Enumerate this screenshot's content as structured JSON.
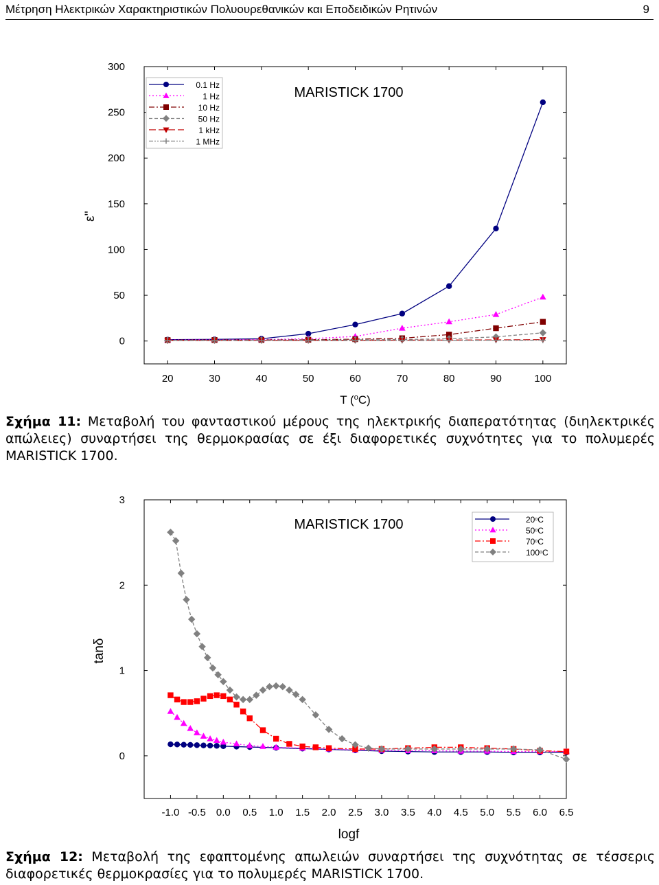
{
  "header": {
    "title": "Μέτρηση Ηλεκτρικών Χαρακτηριστικών Πολυουρεθανικών και Εποδειδικών Ρητινών",
    "page_number": "9"
  },
  "figure11": {
    "caption_label": "Σχήμα 11:",
    "caption_text": "Μεταβολή του φανταστικού μέρους της ηλεκτρικής διαπερατότητας (διηλεκτρικές απώλειες) συναρτήσει της θερμοκρασίας σε έξι διαφορετικές συχνότητες για το πολυμερές MARISTICK 1700."
  },
  "figure12": {
    "caption_label": "Σχήμα 12:",
    "caption_text": "Μεταβολή της εφαπτομένης απωλειών συναρτήσει της συχνότητας σε τέσσερις διαφορετικές θερμοκρασίες για το πολυμερές MARISTICK 1700."
  },
  "chart_data": [
    {
      "type": "line",
      "title": "MARISTICK 1700",
      "xlabel": "T (°C)",
      "xlabel_parts": [
        "T (",
        "o",
        "C)"
      ],
      "ylabel": "ε''",
      "xlim": [
        15,
        105
      ],
      "ylim": [
        -25,
        300
      ],
      "xticks": [
        20,
        30,
        40,
        50,
        60,
        70,
        80,
        90,
        100
      ],
      "yticks": [
        0,
        50,
        100,
        150,
        200,
        250,
        300
      ],
      "legend_position": "top-left",
      "x": [
        20,
        30,
        40,
        50,
        60,
        70,
        80,
        90,
        100
      ],
      "series": [
        {
          "name": "0.1 Hz",
          "marker": "circle",
          "color": "#000080",
          "dash": "",
          "values": [
            1.5,
            1.8,
            2.5,
            8,
            18,
            30,
            60,
            123,
            261
          ]
        },
        {
          "name": "1 Hz",
          "marker": "triangle-up",
          "color": "#ff00ff",
          "dash": "2,3",
          "values": [
            1.2,
            1.4,
            1.6,
            2.5,
            5,
            14,
            21,
            29,
            48
          ]
        },
        {
          "name": "10 Hz",
          "marker": "square",
          "color": "#800000",
          "dash": "8,3,2,3",
          "values": [
            1,
            1.1,
            1.2,
            1.4,
            2,
            3,
            7,
            14,
            21
          ]
        },
        {
          "name": "50 Hz",
          "marker": "diamond",
          "color": "#808080",
          "dash": "5,3",
          "values": [
            0.8,
            0.9,
            1,
            1.1,
            1.3,
            1.6,
            2.5,
            4.5,
            9
          ]
        },
        {
          "name": "1 kHz",
          "marker": "triangle-down",
          "color": "#c00000",
          "dash": "10,4",
          "values": [
            0.6,
            0.6,
            0.7,
            0.7,
            0.8,
            0.9,
            1,
            1.2,
            1.5
          ]
        },
        {
          "name": "1 MHz",
          "marker": "plus",
          "color": "#808080",
          "dash": "6,2,2,2,2,2",
          "values": [
            0.5,
            0.5,
            0.5,
            0.5,
            0.6,
            0.6,
            0.7,
            0.8,
            0.9
          ]
        }
      ]
    },
    {
      "type": "line",
      "title": "MARISTICK 1700",
      "xlabel": "logf",
      "ylabel": "tanδ",
      "xlim": [
        -1.5,
        6.5
      ],
      "ylim": [
        -0.5,
        3
      ],
      "xticks": [
        "-1.0",
        "-0.5",
        "0.0",
        "0.5",
        "1.0",
        "1.5",
        "2.0",
        "2.5",
        "3.0",
        "3.5",
        "4.0",
        "4.5",
        "5.0",
        "5.5",
        "6.0",
        "6.5"
      ],
      "yticks": [
        0,
        1,
        2,
        3
      ],
      "legend_position": "top-right",
      "series": [
        {
          "name": "20°C",
          "name_parts": [
            "20",
            "o",
            "C"
          ],
          "marker": "circle",
          "color": "#000080",
          "dash": "",
          "x": [
            -1.0,
            -0.875,
            -0.75,
            -0.625,
            -0.5,
            -0.375,
            -0.25,
            -0.125,
            0.0,
            0.25,
            0.5,
            1.0,
            1.5,
            2.0,
            2.5,
            3.0,
            3.5,
            4.0,
            4.5,
            5.0,
            5.5,
            6.0,
            6.5
          ],
          "values": [
            0.135,
            0.133,
            0.13,
            0.128,
            0.125,
            0.122,
            0.12,
            0.117,
            0.113,
            0.108,
            0.103,
            0.095,
            0.085,
            0.075,
            0.065,
            0.055,
            0.05,
            0.045,
            0.045,
            0.045,
            0.04,
            0.04,
            0.04
          ]
        },
        {
          "name": "50°C",
          "name_parts": [
            "50",
            "o",
            "C"
          ],
          "marker": "triangle-up",
          "color": "#ff00ff",
          "dash": "2,3",
          "x": [
            -1.0,
            -0.875,
            -0.75,
            -0.625,
            -0.5,
            -0.375,
            -0.25,
            -0.125,
            0.0,
            0.25,
            0.5,
            0.75,
            1.0,
            1.5,
            2.0,
            2.5,
            3.0,
            3.5,
            4.0,
            4.5,
            5.0,
            5.5,
            6.0,
            6.5
          ],
          "values": [
            0.52,
            0.45,
            0.38,
            0.32,
            0.27,
            0.23,
            0.2,
            0.18,
            0.16,
            0.14,
            0.12,
            0.11,
            0.1,
            0.09,
            0.08,
            0.07,
            0.065,
            0.06,
            0.06,
            0.055,
            0.055,
            0.05,
            0.05,
            0.05
          ]
        },
        {
          "name": "70°C",
          "name_parts": [
            "70",
            "o",
            "C"
          ],
          "marker": "square",
          "color": "#ff0000",
          "dash": "8,3,2,3",
          "x": [
            -1.0,
            -0.875,
            -0.75,
            -0.625,
            -0.5,
            -0.375,
            -0.25,
            -0.125,
            0.0,
            0.125,
            0.25,
            0.375,
            0.5,
            0.75,
            1.0,
            1.25,
            1.5,
            1.75,
            2.0,
            2.5,
            3.0,
            3.5,
            4.0,
            4.5,
            5.0,
            5.5,
            6.0,
            6.5
          ],
          "values": [
            0.71,
            0.66,
            0.63,
            0.63,
            0.64,
            0.67,
            0.7,
            0.71,
            0.7,
            0.66,
            0.6,
            0.52,
            0.44,
            0.3,
            0.2,
            0.14,
            0.11,
            0.1,
            0.09,
            0.08,
            0.08,
            0.09,
            0.1,
            0.1,
            0.09,
            0.08,
            0.06,
            0.05
          ]
        },
        {
          "name": "100°C",
          "name_parts": [
            "100",
            "o",
            "C"
          ],
          "marker": "diamond",
          "color": "#808080",
          "dash": "5,3",
          "x": [
            -1.0,
            -0.9,
            -0.8,
            -0.7,
            -0.6,
            -0.5,
            -0.4,
            -0.3,
            -0.2,
            -0.1,
            0.0,
            0.125,
            0.25,
            0.375,
            0.5,
            0.625,
            0.75,
            0.875,
            1.0,
            1.125,
            1.25,
            1.375,
            1.5,
            1.75,
            2.0,
            2.25,
            2.5,
            2.75,
            3.0,
            3.5,
            4.0,
            4.5,
            5.0,
            5.5,
            6.0,
            6.5
          ],
          "values": [
            2.62,
            2.52,
            2.14,
            1.83,
            1.6,
            1.43,
            1.28,
            1.15,
            1.03,
            0.95,
            0.87,
            0.77,
            0.69,
            0.66,
            0.66,
            0.71,
            0.77,
            0.81,
            0.82,
            0.81,
            0.77,
            0.72,
            0.66,
            0.48,
            0.31,
            0.2,
            0.13,
            0.09,
            0.08,
            0.08,
            0.08,
            0.08,
            0.08,
            0.08,
            0.07,
            -0.04
          ]
        }
      ]
    }
  ]
}
